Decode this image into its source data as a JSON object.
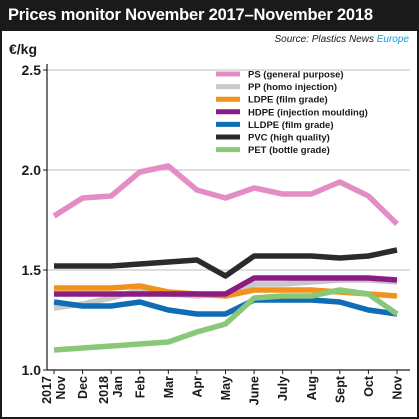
{
  "title": "Prices monitor November 2017–November 2018",
  "source": {
    "prefix": "Source: Plastics News ",
    "highlight": "Europe"
  },
  "chart_data": {
    "type": "line",
    "ylabel": "€/kg",
    "xlabel": "",
    "ylim": [
      1.0,
      2.5
    ],
    "yticks": [
      1.0,
      1.5,
      2.0,
      2.5
    ],
    "ytick_labels": [
      "1.0",
      "1.5",
      "2.0",
      "2.5"
    ],
    "categories": [
      [
        "2017",
        "Nov"
      ],
      [
        "Dec"
      ],
      [
        "2018",
        "Jan"
      ],
      [
        "Feb"
      ],
      [
        "Mar"
      ],
      [
        "Apr"
      ],
      [
        "May"
      ],
      [
        "June"
      ],
      [
        "July"
      ],
      [
        "Aug"
      ],
      [
        "Sept"
      ],
      [
        "Oct"
      ],
      [
        "Nov"
      ]
    ],
    "grid": "horizontal",
    "legend_position": "top",
    "series": [
      {
        "name": "PS (general purpose)",
        "color": "#e48cc4",
        "values": [
          1.77,
          1.86,
          1.87,
          1.99,
          2.02,
          1.9,
          1.86,
          1.91,
          1.88,
          1.88,
          1.94,
          1.87,
          1.73
        ]
      },
      {
        "name": "PP (homo injection)",
        "color": "#c8c8c8",
        "values": [
          1.31,
          1.33,
          1.36,
          1.4,
          1.38,
          1.37,
          1.38,
          1.43,
          1.43,
          1.44,
          1.45,
          1.45,
          1.44
        ]
      },
      {
        "name": "LDPE (film grade)",
        "color": "#f0921c",
        "values": [
          1.41,
          1.41,
          1.41,
          1.42,
          1.39,
          1.38,
          1.37,
          1.4,
          1.4,
          1.4,
          1.39,
          1.38,
          1.37
        ]
      },
      {
        "name": "HDPE (injection moulding)",
        "color": "#8a1c84",
        "values": [
          1.38,
          1.38,
          1.38,
          1.38,
          1.38,
          1.38,
          1.38,
          1.46,
          1.46,
          1.46,
          1.46,
          1.46,
          1.45
        ]
      },
      {
        "name": "LLDPE (film grade)",
        "color": "#0f6db5",
        "values": [
          1.34,
          1.32,
          1.32,
          1.34,
          1.3,
          1.28,
          1.28,
          1.35,
          1.35,
          1.35,
          1.34,
          1.3,
          1.28
        ]
      },
      {
        "name": "PVC (high quality)",
        "color": "#2b2b2b",
        "values": [
          1.52,
          1.52,
          1.52,
          1.53,
          1.54,
          1.55,
          1.47,
          1.57,
          1.57,
          1.57,
          1.56,
          1.57,
          1.6
        ]
      },
      {
        "name": "PET (bottle grade)",
        "color": "#88c878",
        "values": [
          1.1,
          1.11,
          1.12,
          1.13,
          1.14,
          1.19,
          1.23,
          1.36,
          1.37,
          1.37,
          1.4,
          1.38,
          1.28
        ]
      }
    ]
  }
}
